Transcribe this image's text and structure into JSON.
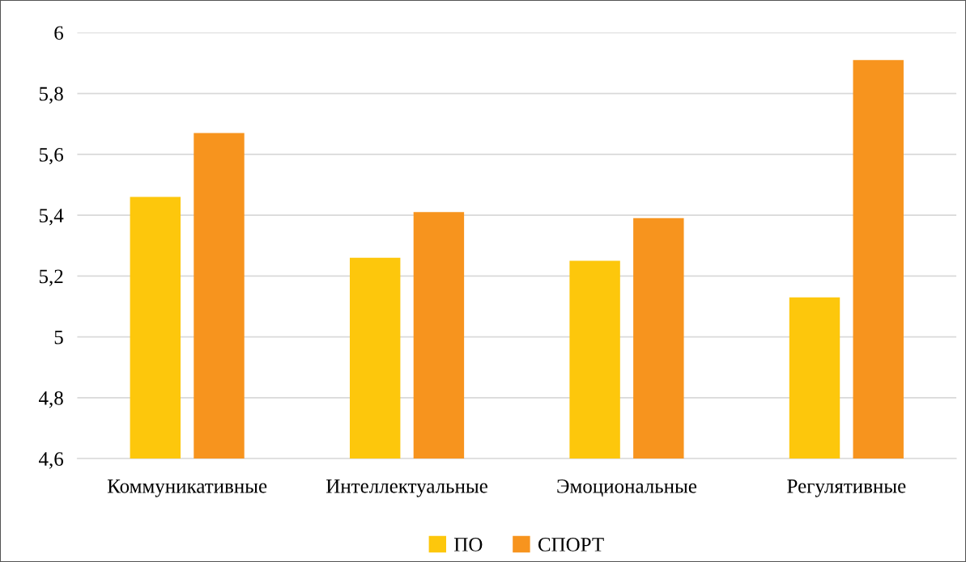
{
  "chart_data": {
    "type": "bar",
    "categories": [
      "Коммуникативные",
      "Интеллектуальные",
      "Эмоциональные",
      "Регулятивные"
    ],
    "series": [
      {
        "name": "ПО",
        "color": "#fdc70c",
        "values": [
          5.46,
          5.26,
          5.25,
          5.13
        ]
      },
      {
        "name": "СПОРТ",
        "color": "#f7941e",
        "values": [
          5.67,
          5.41,
          5.39,
          5.91
        ]
      }
    ],
    "ylim": [
      4.6,
      6
    ],
    "yticks": [
      {
        "value": 4.6,
        "label": "4,6"
      },
      {
        "value": 4.8,
        "label": "4,8"
      },
      5,
      {
        "value": 5.2,
        "label": "5,2"
      },
      {
        "value": 5.4,
        "label": "5,4"
      },
      {
        "value": 5.6,
        "label": "5,6"
      },
      {
        "value": 5.8,
        "label": "5,8"
      },
      6
    ],
    "grid": "y",
    "legend": "bottom"
  }
}
